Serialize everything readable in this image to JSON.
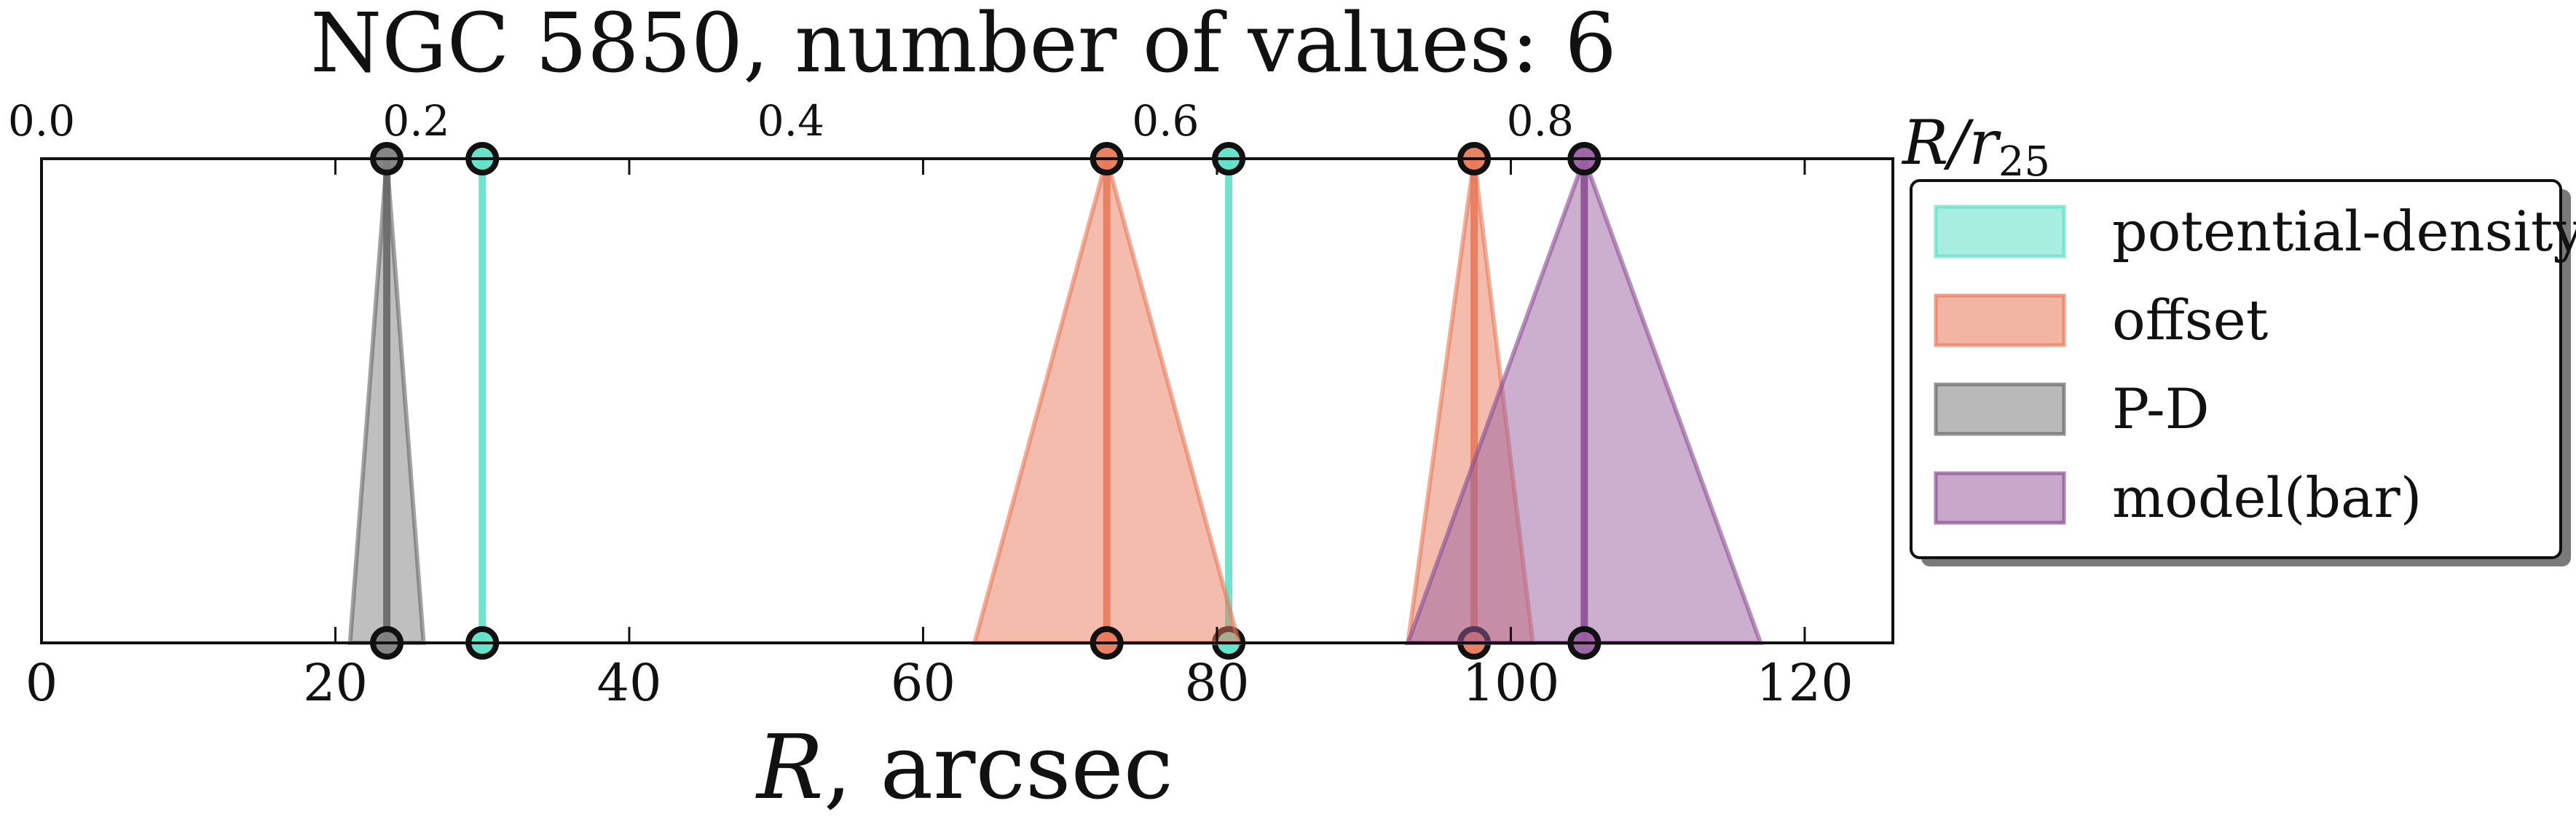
{
  "chart_data": {
    "type": "area",
    "title": "NGC 5850, number of values: 6",
    "xlabel_symbol": "R",
    "xlabel_unit": ", arcsec",
    "top_axis_label_base": "R/r",
    "top_axis_label_sub": "25",
    "xlim": [
      0,
      126
    ],
    "ylim": [
      0,
      1
    ],
    "x_ticks": [
      "0",
      "20",
      "40",
      "60",
      "80",
      "100",
      "120"
    ],
    "x_tick_values": [
      0,
      20,
      40,
      60,
      80,
      100,
      120
    ],
    "top_ticks": [
      "0.0",
      "0.2",
      "0.4",
      "0.6",
      "0.8"
    ],
    "top_tick_values": [
      0.0,
      0.2,
      0.4,
      0.6,
      0.8
    ],
    "r25_arcsec": 127.5,
    "grid": false,
    "legend_placement": "outside-right",
    "series": [
      {
        "name": "potential-density",
        "color": "#5fe0c8",
        "edge": "#5fe0c8",
        "measurements": [
          {
            "value": 30.0,
            "low": 30.0,
            "high": 30.0
          },
          {
            "value": 80.8,
            "low": 80.8,
            "high": 80.8
          }
        ]
      },
      {
        "name": "offset",
        "color": "#e8795a",
        "edge": "#e8795a",
        "measurements": [
          {
            "value": 72.5,
            "low": 63.5,
            "high": 81.5
          },
          {
            "value": 97.5,
            "low": 93.0,
            "high": 101.5
          }
        ]
      },
      {
        "name": "P-D",
        "color": "#808080",
        "edge": "#666666",
        "measurements": [
          {
            "value": 23.5,
            "low": 21.0,
            "high": 26.0
          }
        ]
      },
      {
        "name": "model(bar)",
        "color": "#9a5fa0",
        "edge": "#8a4f92",
        "measurements": [
          {
            "value": 105.0,
            "low": 93.0,
            "high": 117.0
          }
        ]
      }
    ]
  }
}
